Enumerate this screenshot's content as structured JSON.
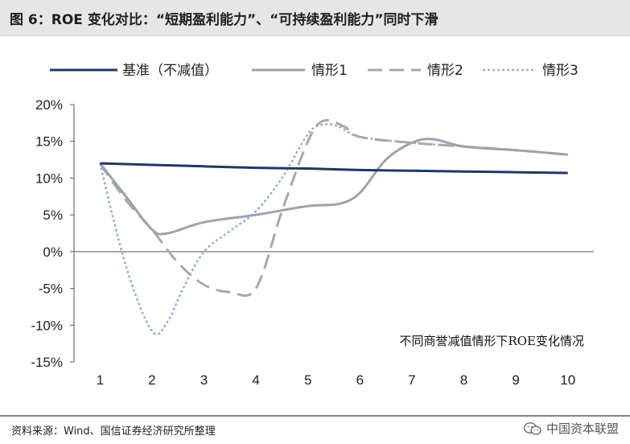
{
  "header": {
    "title": "图 6：ROE 变化对比：“短期盈利能力”、“可持续盈利能力”同时下滑"
  },
  "footer": {
    "source": "资料来源：Wind、国信证券经济研究所整理",
    "watermark": "中国资本联盟",
    "watermark_icon": "wechat-icon"
  },
  "chart_data": {
    "type": "line",
    "annotation": "不同商誉减值情形下ROE变化情况",
    "x": [
      1,
      2,
      3,
      4,
      5,
      6,
      7,
      8,
      9,
      10
    ],
    "y_ticks": [
      "20%",
      "15%",
      "10%",
      "5%",
      "0%",
      "-5%",
      "-10%",
      "-15%"
    ],
    "x_ticks": [
      "1",
      "2",
      "3",
      "4",
      "5",
      "6",
      "7",
      "8",
      "9",
      "10"
    ],
    "ylim": [
      -15,
      20
    ],
    "y_unit": "%",
    "legend_position": "top",
    "series": [
      {
        "name": "基准（不减值）",
        "color": "#1f3864",
        "dash": "solid",
        "points": [
          [
            1,
            12.0
          ],
          [
            2,
            11.8
          ],
          [
            3,
            11.6
          ],
          [
            4,
            11.4
          ],
          [
            5,
            11.3
          ],
          [
            6,
            11.1
          ],
          [
            7,
            11.0
          ],
          [
            8,
            10.9
          ],
          [
            9,
            10.8
          ],
          [
            10,
            10.7
          ]
        ]
      },
      {
        "name": "情形1",
        "color": "#9aa4b0",
        "dash": "solid",
        "points": [
          [
            1,
            12.0
          ],
          [
            1.5,
            7.5
          ],
          [
            2,
            3.0
          ],
          [
            2.3,
            2.5
          ],
          [
            3,
            4.0
          ],
          [
            4,
            5.0
          ],
          [
            5,
            6.2
          ],
          [
            5.6,
            6.5
          ],
          [
            6,
            8.0
          ],
          [
            6.5,
            12.5
          ],
          [
            7,
            14.8
          ],
          [
            7.4,
            15.3
          ],
          [
            8,
            14.3
          ],
          [
            9,
            13.8
          ],
          [
            10,
            13.2
          ]
        ]
      },
      {
        "name": "情形2",
        "color": "#a8a8a8",
        "dash": "long-dash",
        "points": [
          [
            1,
            12.0
          ],
          [
            1.5,
            7.0
          ],
          [
            2,
            3.0
          ],
          [
            2.5,
            -1.5
          ],
          [
            3,
            -4.5
          ],
          [
            3.5,
            -5.5
          ],
          [
            4,
            -5.0
          ],
          [
            4.5,
            5.5
          ],
          [
            5,
            15.0
          ],
          [
            5.3,
            17.8
          ],
          [
            5.7,
            17.0
          ],
          [
            6,
            15.6
          ],
          [
            7,
            14.8
          ],
          [
            8,
            14.3
          ],
          [
            9,
            13.8
          ],
          [
            10,
            13.2
          ]
        ]
      },
      {
        "name": "情形3",
        "color": "#9ab1cc",
        "dash": "dotted",
        "points": [
          [
            1,
            12.0
          ],
          [
            1.5,
            -2.0
          ],
          [
            2,
            -10.8
          ],
          [
            2.3,
            -9.5
          ],
          [
            2.6,
            -5.0
          ],
          [
            3,
            0.0
          ],
          [
            3.5,
            2.8
          ],
          [
            4,
            5.5
          ],
          [
            4.5,
            10.0
          ],
          [
            5,
            16.0
          ],
          [
            5.3,
            17.3
          ],
          [
            5.6,
            17.0
          ],
          [
            6,
            15.6
          ],
          [
            7,
            14.8
          ],
          [
            8,
            14.3
          ],
          [
            9,
            13.8
          ],
          [
            10,
            13.2
          ]
        ]
      }
    ]
  }
}
